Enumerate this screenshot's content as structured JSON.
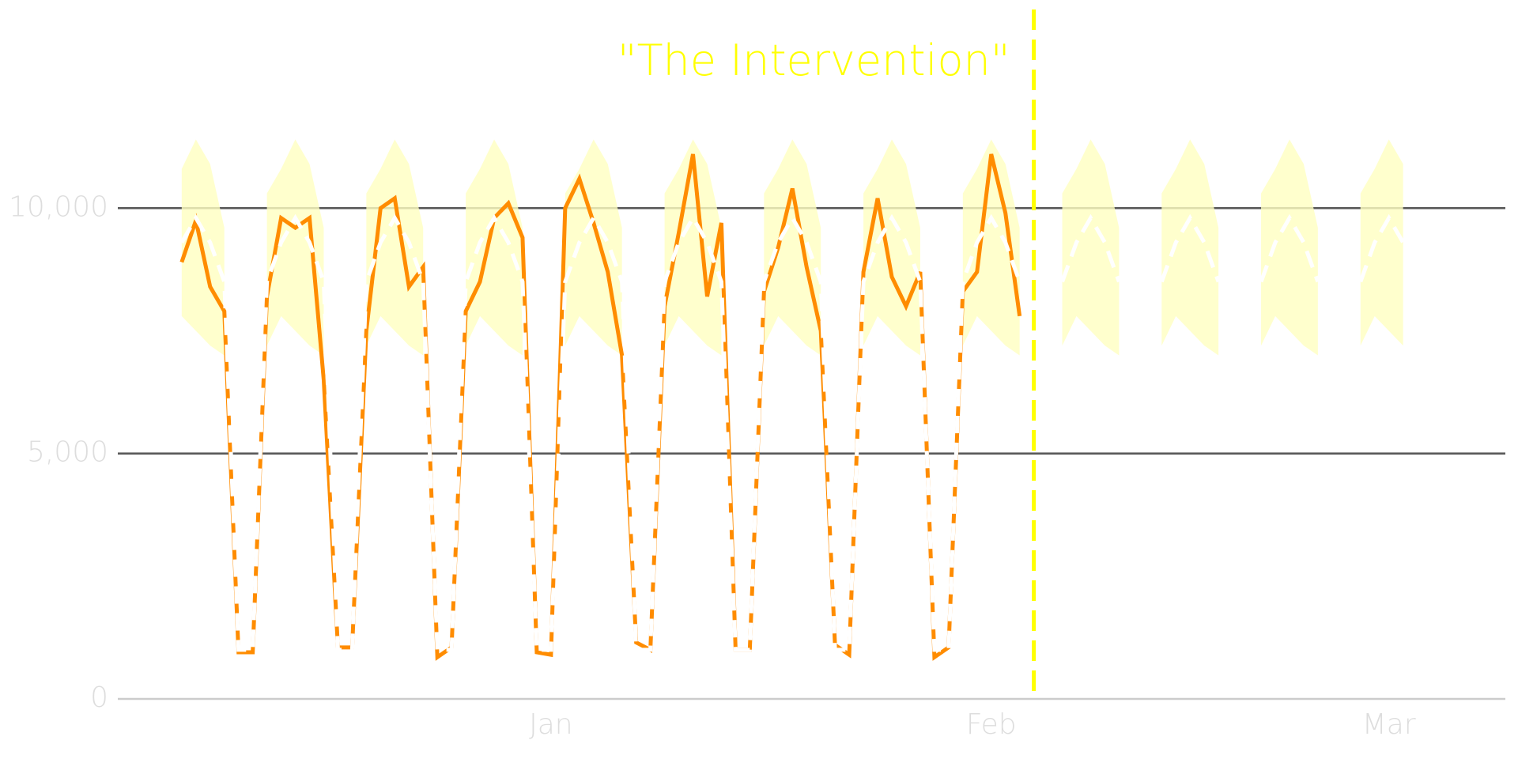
{
  "chart_data": {
    "type": "line",
    "annotation": {
      "x": 60,
      "text": "\"The Intervention\"",
      "color": "#ffff00"
    },
    "x": [
      0,
      1,
      2,
      3,
      4,
      5,
      6,
      7,
      8,
      9,
      10,
      11,
      12,
      13,
      14,
      15,
      16,
      17,
      18,
      19,
      20,
      21,
      22,
      23,
      24,
      25,
      26,
      27,
      28,
      29,
      30,
      31,
      32,
      33,
      34,
      35,
      36,
      37,
      38,
      39,
      40,
      41,
      42,
      43,
      44,
      45,
      46,
      47,
      48,
      49,
      50,
      51,
      52,
      53,
      54,
      55,
      56,
      57,
      58,
      59,
      60,
      61,
      62,
      63,
      64,
      65,
      66,
      67,
      68,
      69,
      70,
      71,
      72,
      73,
      74,
      75,
      76,
      77,
      78,
      79,
      80,
      81,
      82,
      83,
      84,
      85,
      86
    ],
    "band": {
      "color": "#ffffc0",
      "lower": [
        7800,
        7500,
        7200,
        7000,
        null,
        null,
        7200,
        7800,
        7500,
        7200,
        7000,
        null,
        null,
        7200,
        7800,
        7500,
        7200,
        7000,
        null,
        null,
        7200,
        7800,
        7500,
        7200,
        7000,
        null,
        null,
        7200,
        7800,
        7500,
        7200,
        7000,
        null,
        null,
        7200,
        7800,
        7500,
        7200,
        7000,
        null,
        null,
        7200,
        7800,
        7500,
        7200,
        7000,
        null,
        null,
        7200,
        7800,
        7500,
        7200,
        7000,
        null,
        null,
        7200,
        7800,
        7500,
        7200,
        7000,
        null,
        null,
        7200,
        7800,
        7500,
        7200,
        7000,
        null,
        null,
        7200,
        7800,
        7500,
        7200,
        7000,
        null,
        null,
        7200,
        7800,
        7500,
        7200,
        7000,
        null,
        null,
        7200,
        7800,
        7500,
        7200
      ],
      "upper": [
        10800,
        11400,
        10900,
        9600,
        null,
        null,
        10300,
        10800,
        11400,
        10900,
        9600,
        null,
        null,
        10300,
        10800,
        11400,
        10900,
        9600,
        null,
        null,
        10300,
        10800,
        11400,
        10900,
        9600,
        null,
        null,
        10300,
        10800,
        11400,
        10900,
        9600,
        null,
        null,
        10300,
        10800,
        11400,
        10900,
        9600,
        null,
        null,
        10300,
        10800,
        11400,
        10900,
        9600,
        null,
        null,
        10300,
        10800,
        11400,
        10900,
        9600,
        null,
        null,
        10300,
        10800,
        11400,
        10900,
        9600,
        null,
        null,
        10300,
        10800,
        11400,
        10900,
        9600,
        null,
        null,
        10300,
        10800,
        11400,
        10900,
        9600,
        null,
        null,
        10300,
        10800,
        11400,
        10900,
        9600,
        null,
        null,
        10300,
        10800,
        11400,
        10900
      ]
    },
    "series": [
      {
        "color": "#ff8c00",
        "dashed": false,
        "values": [
          8900,
          9750,
          8400,
          7900,
          950,
          950,
          8200,
          9800,
          9600,
          9800,
          6500,
          1050,
          1050,
          7500,
          10000,
          10200,
          8400,
          8800,
          850,
          1050,
          7900,
          8500,
          9800,
          10100,
          9400,
          950,
          900,
          10000,
          10600,
          9700,
          8700,
          7000,
          1150,
          1000,
          8000,
          9500,
          11100,
          8200,
          9700,
          1000,
          1000,
          8300,
          9200,
          10400,
          8800,
          7500,
          1100,
          900,
          8700,
          10200,
          8600,
          8000,
          8700,
          850,
          1050,
          8300,
          8700,
          11100,
          9900,
          7800,
          null,
          null,
          null,
          null,
          null,
          null,
          null,
          null,
          null,
          null,
          null,
          null,
          null,
          null,
          null,
          null,
          null,
          null,
          null,
          null,
          null,
          null,
          null,
          null,
          null,
          null,
          null
        ]
      },
      {
        "color": "#ffffff",
        "dashed": true,
        "values": [
          9300,
          9800,
          9300,
          8500,
          1000,
          1000,
          8500,
          9300,
          9800,
          9300,
          8500,
          1000,
          1000,
          8500,
          9300,
          9800,
          9300,
          8500,
          1000,
          1000,
          8500,
          9300,
          9800,
          9300,
          8500,
          1000,
          1000,
          8500,
          9300,
          9800,
          9300,
          8500,
          1000,
          1000,
          8500,
          9300,
          9800,
          9300,
          8500,
          1000,
          1000,
          8500,
          9300,
          9800,
          9300,
          8500,
          1000,
          1000,
          8500,
          9300,
          9800,
          9300,
          8500,
          1000,
          1000,
          8500,
          9300,
          9800,
          9300,
          8500,
          null,
          null,
          8500,
          9300,
          9800,
          9300,
          8500,
          null,
          null,
          8500,
          9300,
          9800,
          9300,
          8500,
          null,
          null,
          8500,
          9300,
          9800,
          9300,
          8500,
          null,
          null,
          8500,
          9300,
          9800,
          9300
        ]
      }
    ],
    "xlim": [
      -4.5,
      93.2
    ],
    "xticks": [
      {
        "value": 26,
        "label": "Jan"
      },
      {
        "value": 57,
        "label": "Feb"
      },
      {
        "value": 85,
        "label": "Mar"
      }
    ],
    "ylim": [
      0,
      14000
    ],
    "yticks": [
      0,
      {
        "value": 5000,
        "label": "5,000"
      },
      {
        "value": 10000,
        "label": "10,000"
      }
    ],
    "grid": true
  }
}
